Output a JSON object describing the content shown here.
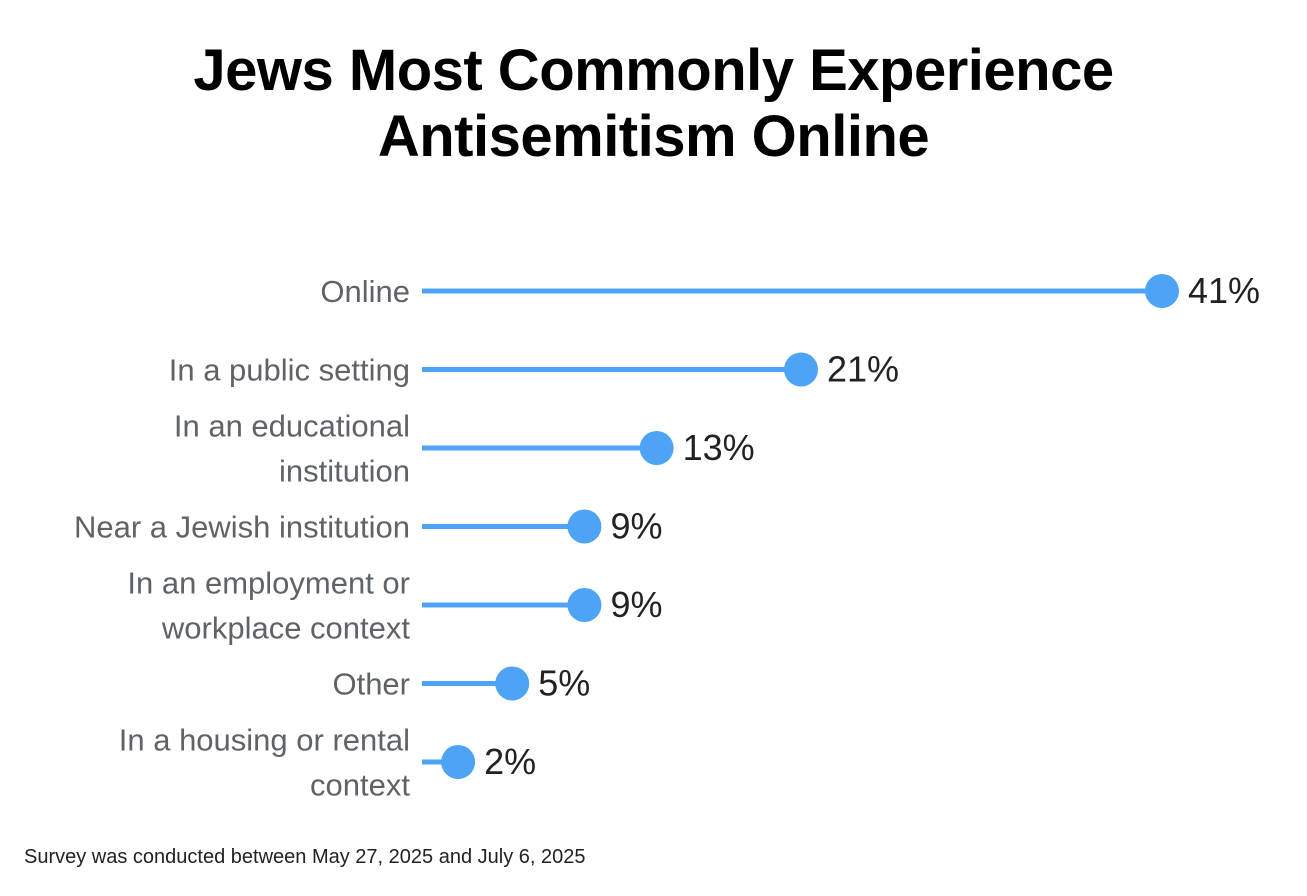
{
  "title_lines": [
    "Jews Most Commonly Experience",
    "Antisemitism Online"
  ],
  "footnote": "Survey was conducted between May 27, 2025 and July 6, 2025",
  "colors": {
    "accent": "#4da3f5",
    "label": "#5f6368",
    "value": "#222222"
  },
  "chart_data": {
    "type": "bar",
    "style": "lollipop",
    "orientation": "horizontal",
    "categories": [
      [
        "Online"
      ],
      [
        "In a public setting"
      ],
      [
        "In an educational",
        "institution"
      ],
      [
        "Near a Jewish institution"
      ],
      [
        "In an employment or",
        "workplace context"
      ],
      [
        "Other"
      ],
      [
        "In a housing or rental",
        "context"
      ]
    ],
    "values": [
      41,
      21,
      13,
      9,
      9,
      5,
      2
    ],
    "value_labels": [
      "41%",
      "21%",
      "13%",
      "9%",
      "9%",
      "5%",
      "2%"
    ],
    "unit": "%",
    "xlim": [
      0,
      41
    ],
    "grid": false,
    "legend": "none"
  }
}
